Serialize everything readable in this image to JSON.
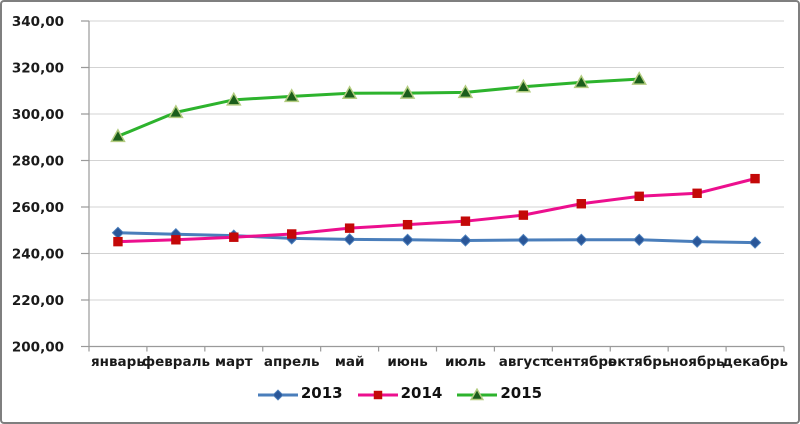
{
  "chart_data": {
    "type": "line",
    "title": "",
    "xlabel": "",
    "ylabel": "",
    "ylim": [
      200,
      340
    ],
    "ytick_values": [
      340,
      320,
      300,
      280,
      260,
      240,
      220,
      200
    ],
    "ytick_labels": [
      "340,00",
      "320,00",
      "300,00",
      "280,00",
      "260,00",
      "240,00",
      "220,00",
      "200,00"
    ],
    "grid": true,
    "legend_position": "bottom",
    "categories": [
      "январь",
      "февраль",
      "март",
      "апрель",
      "май",
      "июнь",
      "июль",
      "август",
      "сентябрь",
      "октябрь",
      "ноябрь",
      "декабрь"
    ],
    "series": [
      {
        "name": "2013",
        "marker": "diamond",
        "line_color": "#4a7ebb",
        "marker_color": "#2a5698",
        "values": [
          248.9,
          248.3,
          247.7,
          246.5,
          246.1,
          245.9,
          245.6,
          245.8,
          245.9,
          245.9,
          245.1,
          244.7
        ]
      },
      {
        "name": "2014",
        "marker": "square",
        "line_color": "#ec0f8e",
        "marker_color": "#c40808",
        "values": [
          245.1,
          245.9,
          247.0,
          248.4,
          250.9,
          252.4,
          253.9,
          256.5,
          261.4,
          264.6,
          265.9,
          272.2
        ]
      },
      {
        "name": "2015",
        "marker": "triangle",
        "line_color": "#2db32d",
        "marker_color": "#1b5e1b",
        "marker_border": "#b3cc7f",
        "values": [
          290.4,
          300.7,
          306.1,
          307.6,
          308.9,
          309.0,
          309.3,
          311.7,
          313.6,
          315.0,
          null,
          null
        ]
      }
    ]
  },
  "colors": {
    "gridline": "#d3d3d3",
    "axis": "#9a9a9a",
    "label_text": "#1a1a1a",
    "frame_border": "#7f7f7f",
    "background": "#ffffff"
  }
}
